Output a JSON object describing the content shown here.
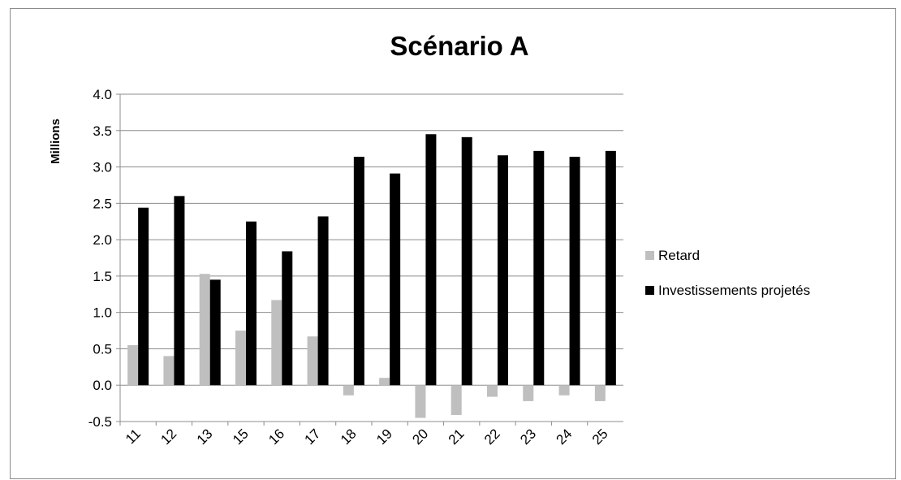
{
  "chart_data": {
    "type": "bar",
    "title": "Scénario A",
    "xlabel": "",
    "ylabel": "Millions",
    "ylim": [
      -0.5,
      4.0
    ],
    "ytick_step": 0.5,
    "grid": true,
    "legend_position": "right",
    "categories": [
      "11",
      "12",
      "13",
      "15",
      "16",
      "17",
      "18",
      "19",
      "20",
      "21",
      "22",
      "23",
      "24",
      "25"
    ],
    "series": [
      {
        "name": "Retard",
        "color": "#bfbfbf",
        "values": [
          0.55,
          0.4,
          1.53,
          0.75,
          1.17,
          0.67,
          -0.14,
          0.1,
          -0.45,
          -0.41,
          -0.16,
          -0.22,
          -0.14,
          -0.22
        ]
      },
      {
        "name": "Investissements projetés",
        "color": "#000000",
        "values": [
          2.44,
          2.6,
          1.45,
          2.25,
          1.84,
          2.32,
          3.14,
          2.91,
          3.45,
          3.41,
          3.16,
          3.22,
          3.14,
          3.22
        ]
      }
    ],
    "gridline_color": "#8c8c8c"
  }
}
